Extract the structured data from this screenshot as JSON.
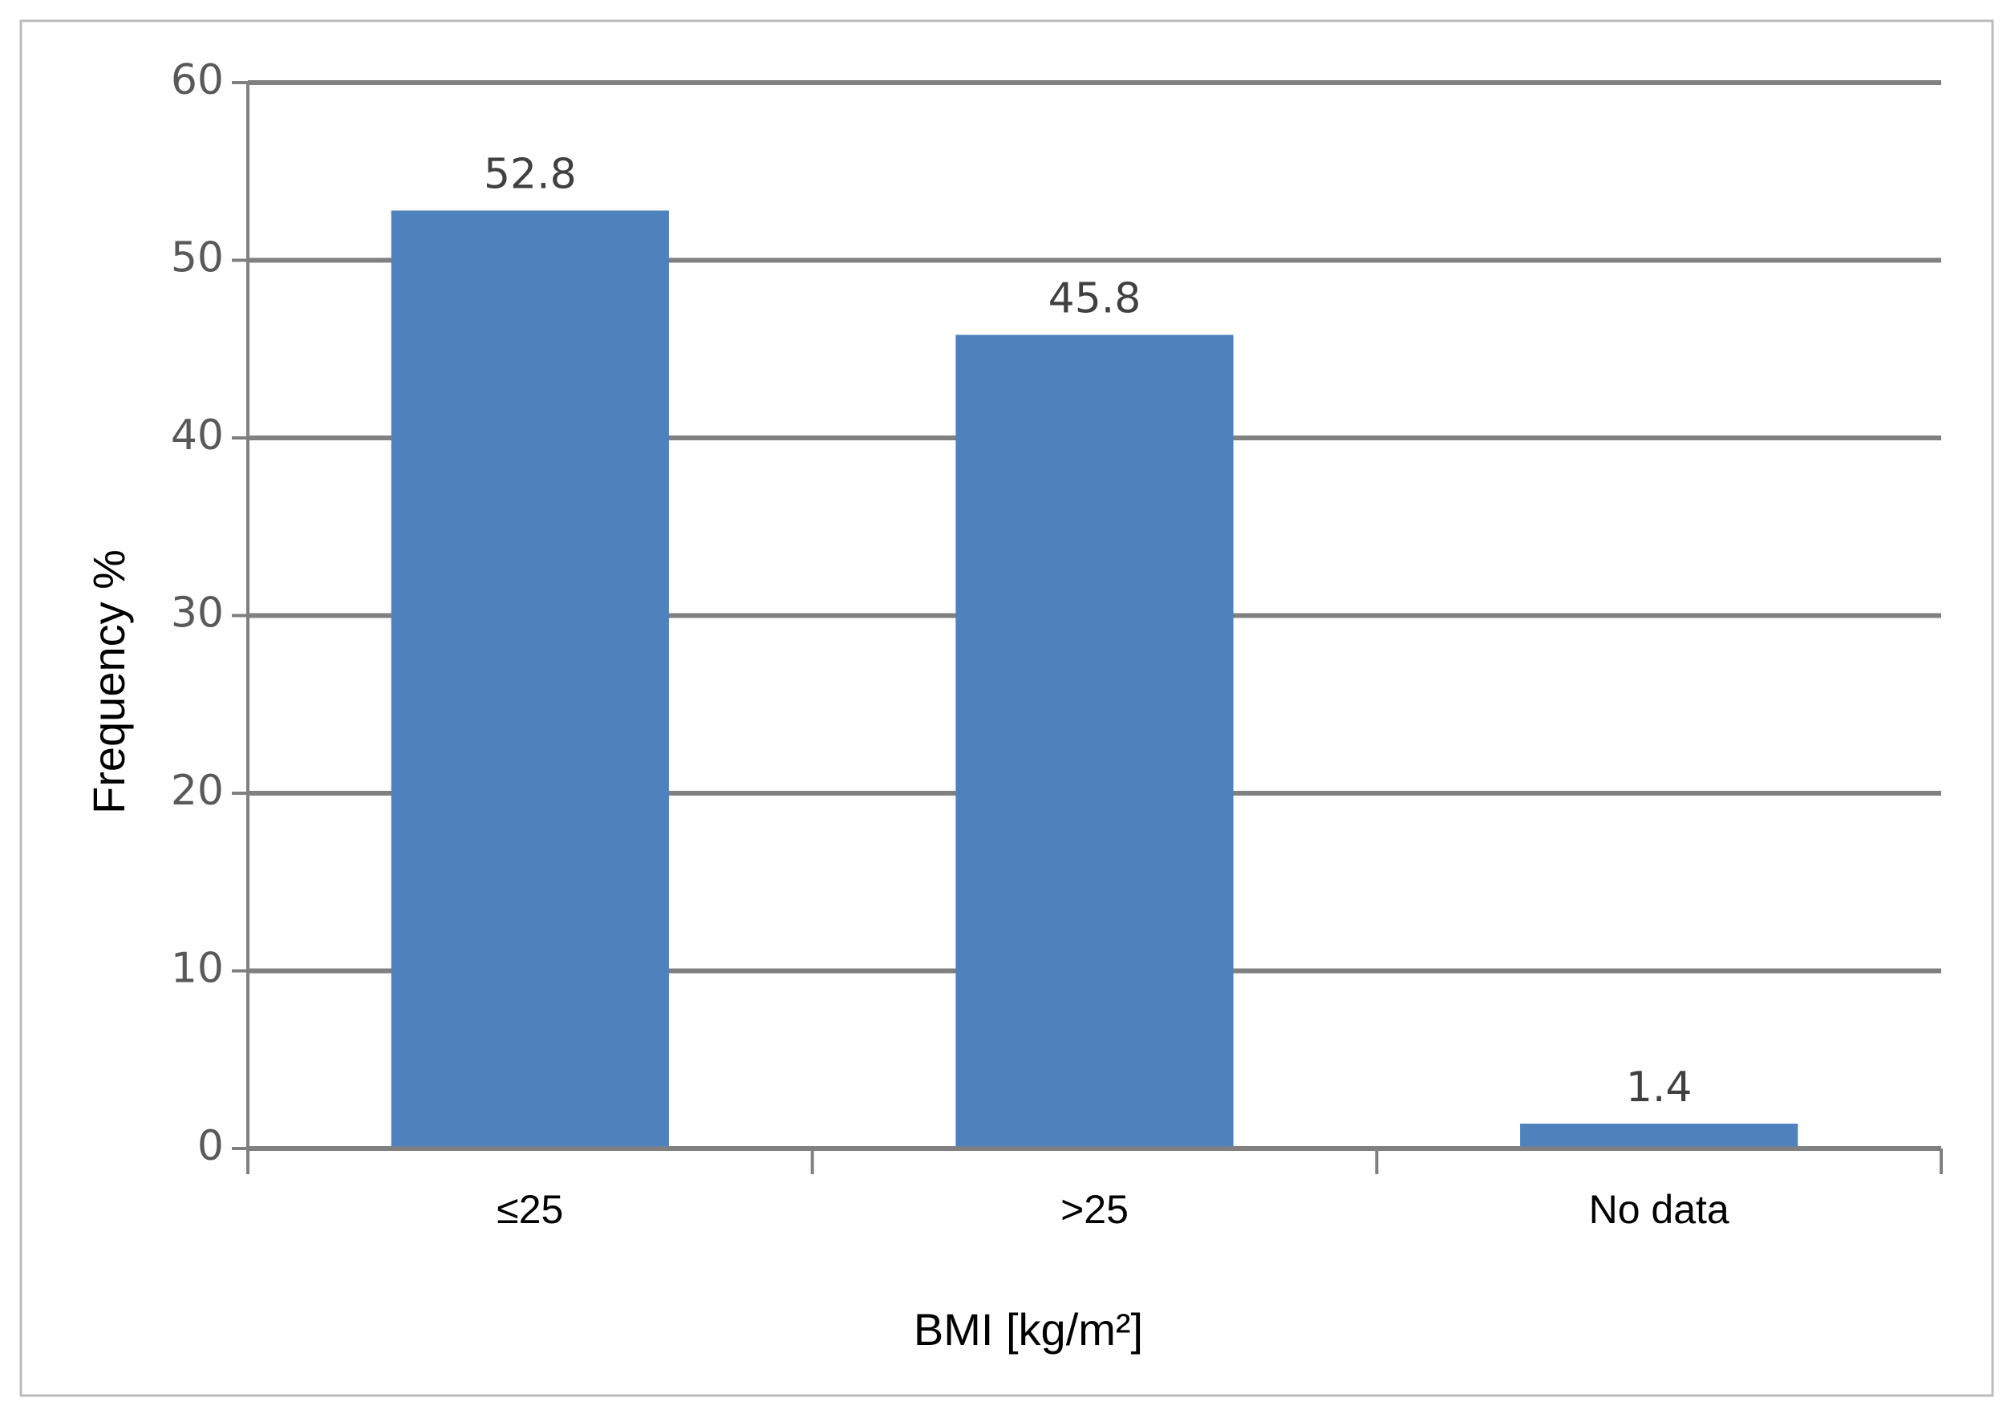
{
  "chart_data": {
    "type": "bar",
    "x_label": "BMI [kg/m²]",
    "y_label": "Frequency %",
    "categories": [
      "≤25",
      ">25",
      "No data"
    ],
    "values": [
      52.8,
      45.8,
      1.4
    ],
    "color": "#4f81bd",
    "ylim": [
      0,
      60
    ],
    "yticks": [
      0,
      10,
      20,
      30,
      40,
      50,
      60
    ],
    "grid": true,
    "data_labels": true
  }
}
